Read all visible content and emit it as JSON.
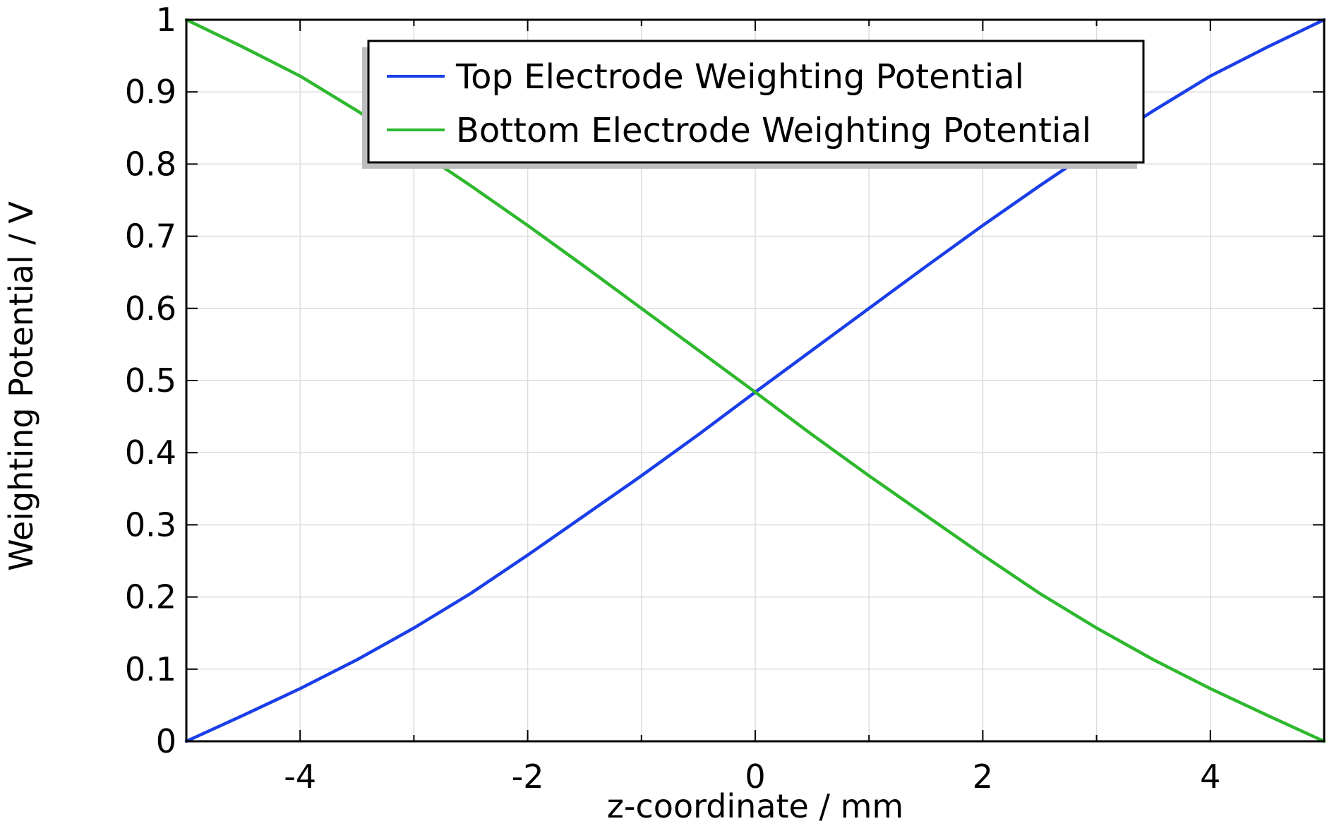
{
  "chart_data": {
    "type": "line",
    "title": "",
    "xlabel": "z-coordinate / mm",
    "ylabel": "Weighting Potential / V",
    "xlim": [
      -5,
      5
    ],
    "ylim": [
      0,
      1
    ],
    "grid": true,
    "legend_position": "top-center",
    "x_ticks": [
      -4,
      -2,
      0,
      2,
      4
    ],
    "x_tick_labels": [
      "-4",
      "-2",
      "0",
      "2",
      "4"
    ],
    "y_ticks": [
      0,
      0.1,
      0.2,
      0.3,
      0.4,
      0.5,
      0.6,
      0.7,
      0.8,
      0.9,
      1
    ],
    "y_tick_labels": [
      "0",
      "0.1",
      "0.2",
      "0.3",
      "0.4",
      "0.5",
      "0.6",
      "0.7",
      "0.8",
      "0.9",
      "1"
    ],
    "x": [
      -5,
      -4.5,
      -4,
      -3.5,
      -3,
      -2.5,
      -2,
      -1.5,
      -1,
      -0.5,
      0,
      0.5,
      1,
      1.5,
      2,
      2.5,
      3,
      3.5,
      4,
      4.5,
      5
    ],
    "series": [
      {
        "name": "Top Electrode Weighting Potential",
        "color": "#1a3ee8",
        "values": [
          0,
          0.036,
          0.073,
          0.113,
          0.157,
          0.205,
          0.258,
          0.313,
          0.368,
          0.425,
          0.484,
          0.542,
          0.6,
          0.658,
          0.715,
          0.77,
          0.823,
          0.874,
          0.922,
          0.962,
          1.0
        ]
      },
      {
        "name": "Bottom Electrode Weighting Potential",
        "color": "#2eb82e",
        "values": [
          1.0,
          0.962,
          0.922,
          0.874,
          0.823,
          0.77,
          0.715,
          0.658,
          0.6,
          0.542,
          0.484,
          0.425,
          0.368,
          0.313,
          0.258,
          0.205,
          0.157,
          0.113,
          0.073,
          0.036,
          0
        ]
      }
    ]
  }
}
